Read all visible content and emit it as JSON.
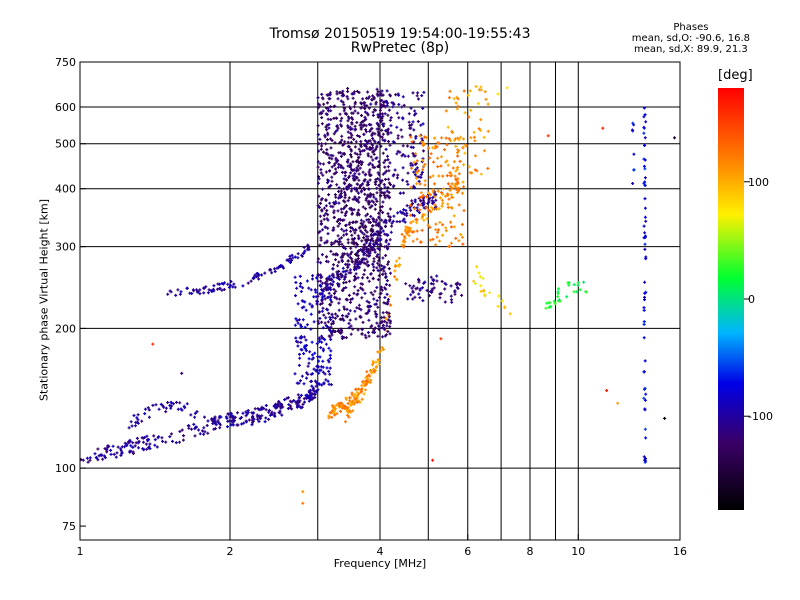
{
  "figure": {
    "title_line1": "Tromsø 20150519 19:54:00-19:55:43",
    "title_line2": "RwPretec (8p)",
    "stats_title": "Phases",
    "stats_o": "mean, sd,O: -90.6, 16.8",
    "stats_x": "mean, sd,X:  89.9, 21.3"
  },
  "colorbar": {
    "unit": "[deg]",
    "range": [
      -180,
      180
    ],
    "tick_values": [
      100,
      0,
      -100
    ],
    "tick_labels": [
      "100",
      "0",
      "-100"
    ]
  },
  "chart_data": {
    "type": "scatter",
    "xlabel": "Frequency [MHz]",
    "ylabel": "Stationary phase Virtual Height [km]",
    "xscale": "log",
    "yscale": "log",
    "xlim": [
      1,
      16
    ],
    "ylim": [
      70,
      750
    ],
    "x_ticks": [
      1,
      2,
      4,
      6,
      8,
      10,
      16
    ],
    "y_ticks": [
      75,
      100,
      200,
      300,
      400,
      500,
      600,
      750
    ],
    "grid_x": [
      2,
      3,
      4,
      5,
      6,
      7,
      8,
      9,
      10
    ],
    "grid_y": [
      100,
      200,
      300,
      400,
      500,
      600
    ],
    "grid": true,
    "color_encoding": "phase (deg)",
    "traces": [
      {
        "x": [
          1.0,
          1.1,
          1.2,
          1.3,
          1.45,
          1.6,
          1.8,
          2.0,
          2.2,
          2.4,
          2.6,
          2.8,
          3.0
        ],
        "y": [
          105,
          107,
          109,
          112,
          115,
          118,
          123,
          127,
          130,
          133,
          137,
          140,
          143
        ],
        "phase": -105,
        "n": 240,
        "jitter": 0.035
      },
      {
        "x": [
          1.25,
          1.45,
          1.6,
          1.8,
          2.0,
          2.3,
          2.6,
          2.85,
          3.0
        ],
        "y": [
          125,
          135,
          135,
          128,
          125,
          128,
          135,
          142,
          150
        ],
        "phase": -100,
        "n": 120,
        "jitter": 0.03
      },
      {
        "x": [
          1.5,
          1.7,
          1.9,
          2.1,
          2.3,
          2.5,
          2.7,
          2.9
        ],
        "y": [
          240,
          240,
          245,
          250,
          260,
          270,
          285,
          300
        ],
        "phase": -100,
        "n": 100,
        "jitter": 0.02
      },
      {
        "x": [
          3.0,
          3.2,
          3.4,
          3.6,
          3.8,
          4.0,
          4.3,
          4.6,
          4.9,
          5.2
        ],
        "y": [
          230,
          250,
          265,
          280,
          300,
          320,
          340,
          360,
          370,
          380
        ],
        "phase": -105,
        "n": 170,
        "jitter": 0.04
      },
      {
        "x": [
          3.4,
          3.5,
          3.6,
          3.7,
          3.8,
          3.9,
          4.0,
          4.2,
          4.4,
          4.6,
          4.9,
          5.2,
          5.6,
          5.8
        ],
        "y": [
          130,
          135,
          140,
          148,
          155,
          165,
          175,
          230,
          300,
          330,
          350,
          370,
          390,
          420
        ],
        "phase": 110,
        "n": 150,
        "jitter": 0.035
      },
      {
        "x": [
          3.1,
          3.2,
          3.3,
          3.4,
          3.5,
          3.6,
          3.7,
          3.8
        ],
        "y": [
          130,
          132,
          135,
          138,
          140,
          145,
          150,
          160
        ],
        "phase": 115,
        "n": 70,
        "jitter": 0.03
      },
      {
        "x": [
          4.5,
          4.7,
          4.9,
          5.2,
          5.5,
          5.8
        ],
        "y": [
          240,
          245,
          240,
          250,
          235,
          240
        ],
        "phase": -110,
        "n": 60,
        "jitter": 0.05
      },
      {
        "x": [
          6.2,
          6.5,
          7.2
        ],
        "y": [
          260,
          240,
          230
        ],
        "phase": 80,
        "n": 18,
        "jitter": 0.06
      },
      {
        "x": [
          8.6,
          9.0,
          9.4,
          10.0,
          10.5
        ],
        "y": [
          225,
          235,
          240,
          245,
          240
        ],
        "phase": 20,
        "n": 30,
        "jitter": 0.04
      }
    ],
    "clouds": [
      {
        "x": [
          3.0,
          4.2
        ],
        "y": [
          190,
          650
        ],
        "phase": -120,
        "n": 900
      },
      {
        "x": [
          3.3,
          4.1
        ],
        "y": [
          280,
          660
        ],
        "phase": -125,
        "n": 300
      },
      {
        "x": [
          4.1,
          4.9
        ],
        "y": [
          380,
          650
        ],
        "phase": -110,
        "n": 120
      },
      {
        "x": [
          4.6,
          5.9
        ],
        "y": [
          300,
          520
        ],
        "phase": 120,
        "n": 150
      },
      {
        "x": [
          5.4,
          6.6
        ],
        "y": [
          430,
          670
        ],
        "phase": 110,
        "n": 60
      },
      {
        "x": [
          2.7,
          3.2
        ],
        "y": [
          150,
          260
        ],
        "phase": -90,
        "n": 160
      }
    ],
    "columns": [
      {
        "x": 13.6,
        "y": [
          100,
          600
        ],
        "phase": -75,
        "n": 60
      },
      {
        "x": 12.9,
        "y": [
          400,
          560
        ],
        "phase": -70,
        "n": 8
      }
    ],
    "sparse": [
      [
        7.2,
        660,
        95
      ],
      [
        6.9,
        640,
        90
      ],
      [
        8.7,
        520,
        160
      ],
      [
        11.2,
        540,
        150
      ],
      [
        15.6,
        515,
        -140
      ],
      [
        6.3,
        610,
        90
      ],
      [
        1.4,
        185,
        160
      ],
      [
        1.6,
        160,
        -110
      ],
      [
        2.8,
        84,
        130
      ],
      [
        2.8,
        89,
        100
      ],
      [
        5.1,
        104,
        160
      ],
      [
        5.3,
        190,
        160
      ],
      [
        11.4,
        147,
        160
      ],
      [
        12.0,
        138,
        120
      ],
      [
        14.9,
        128,
        -180
      ],
      [
        7.3,
        215,
        90
      ]
    ]
  }
}
